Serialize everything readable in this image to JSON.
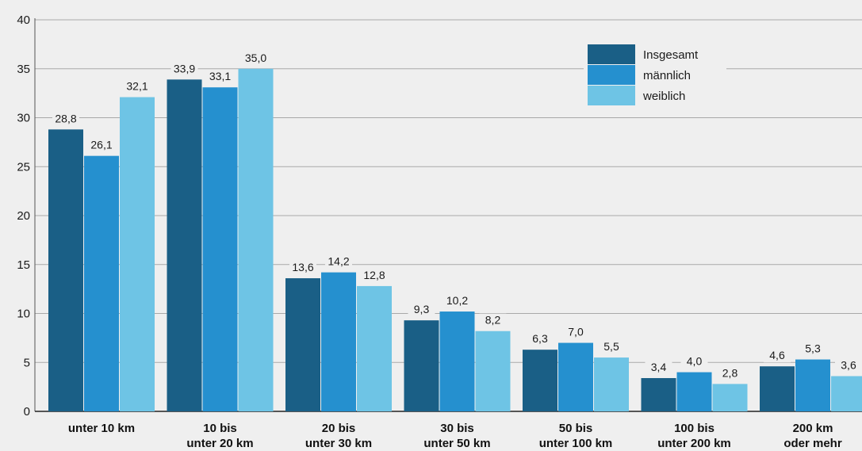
{
  "chart_data": {
    "type": "bar",
    "title": "",
    "xlabel": "",
    "ylabel": "",
    "ylim": [
      0,
      40
    ],
    "yticks": [
      "0",
      "5",
      "10",
      "15",
      "20",
      "25",
      "30",
      "35",
      "40"
    ],
    "grid": true,
    "legend_position": "top-right",
    "categories": [
      [
        "unter 10 km"
      ],
      [
        "10 bis",
        "unter 20 km"
      ],
      [
        "20 bis",
        "unter 30 km"
      ],
      [
        "30 bis",
        "unter 50 km"
      ],
      [
        "50 bis",
        "unter 100 km"
      ],
      [
        "100 bis",
        "unter 200 km"
      ],
      [
        "200 km",
        "oder mehr"
      ]
    ],
    "series": [
      {
        "name": "Insgesamt",
        "color": "#1a5f86",
        "values": [
          28.8,
          33.9,
          13.6,
          9.3,
          6.3,
          3.4,
          4.6
        ],
        "labels": [
          "28,8",
          "33,9",
          "13,6",
          "9,3",
          "6,3",
          "3,4",
          "4,6"
        ]
      },
      {
        "name": "männlich",
        "color": "#2590cf",
        "values": [
          26.1,
          33.1,
          14.2,
          10.2,
          7.0,
          4.0,
          5.3
        ],
        "labels": [
          "26,1",
          "33,1",
          "14,2",
          "10,2",
          "7,0",
          "4,0",
          "5,3"
        ]
      },
      {
        "name": "weiblich",
        "color": "#6ec4e5",
        "values": [
          32.1,
          35.0,
          12.8,
          8.2,
          5.5,
          2.8,
          3.6
        ],
        "labels": [
          "32,1",
          "35,0",
          "12,8",
          "8,2",
          "5,5",
          "2,8",
          "3,6"
        ]
      }
    ]
  }
}
